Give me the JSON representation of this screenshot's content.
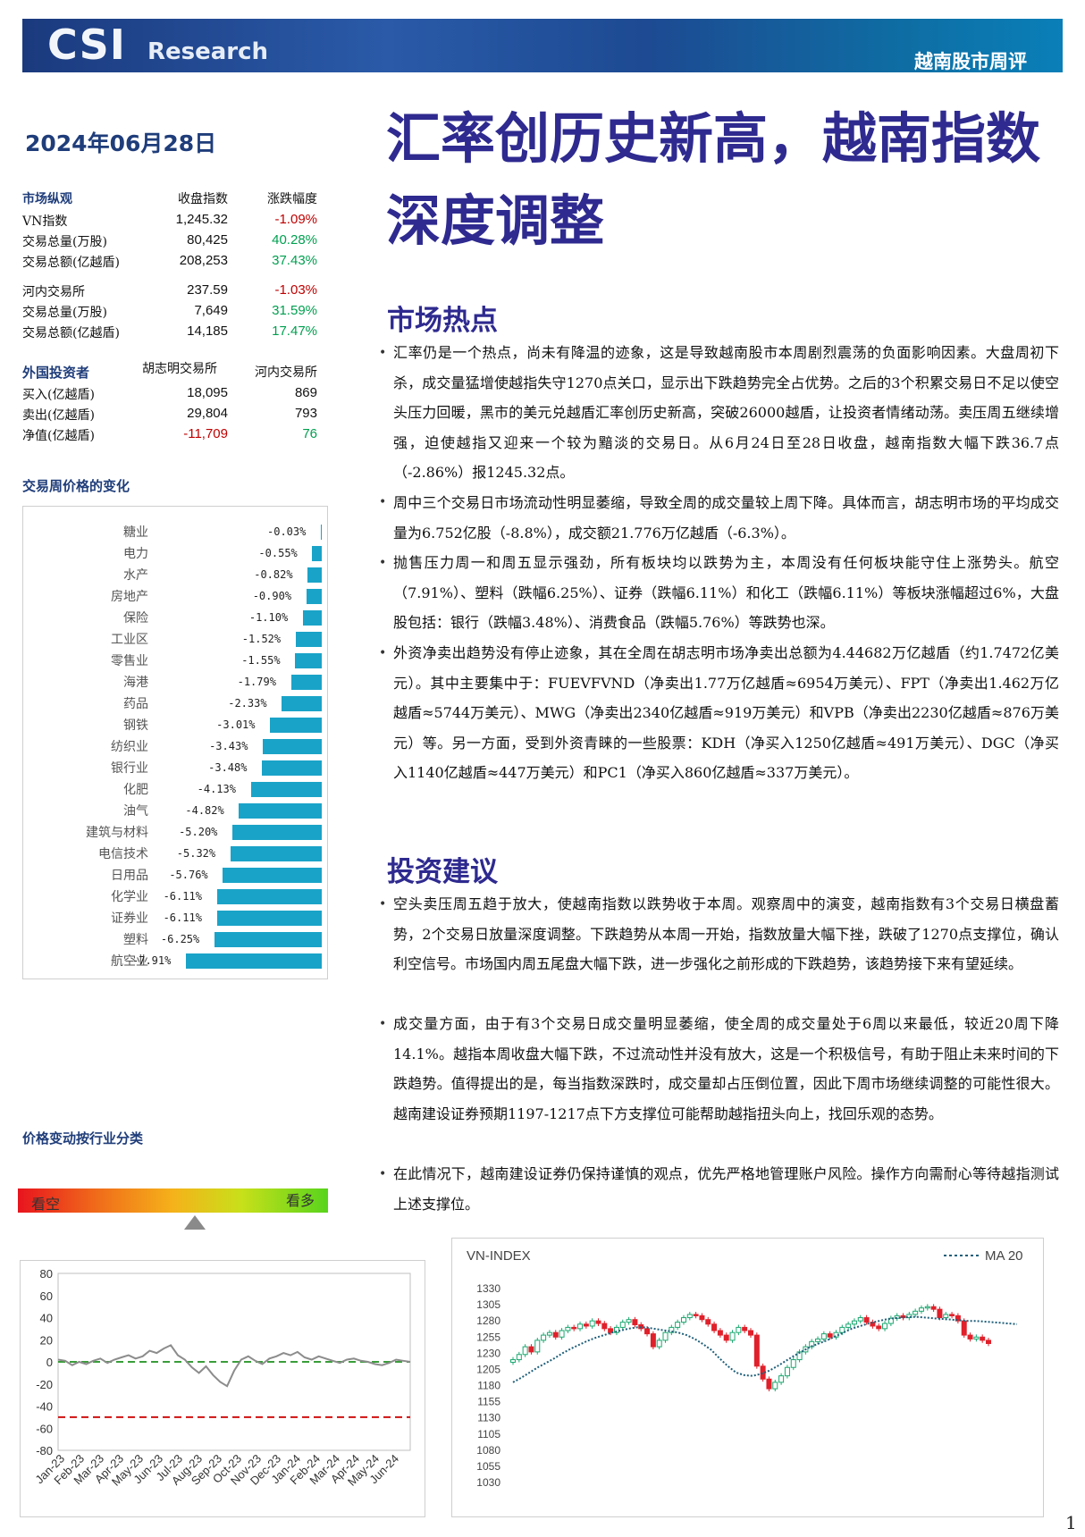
{
  "header": {
    "brand_main": "CSI",
    "brand_sub": "Research",
    "report_type": "越南股市周评"
  },
  "date": "2024年06月28日",
  "headline": "汇率创历史新高，越南指数深度调整",
  "market_overview": {
    "headers": [
      "市场纵观",
      "收盘指数",
      "涨跌幅度"
    ],
    "hose": [
      {
        "label": "VN指数",
        "value": "1,245.32",
        "change": "-1.09%"
      },
      {
        "label": "交易总量(万股)",
        "value": "80,425",
        "change": "40.28%"
      },
      {
        "label": "交易总额(亿越盾)",
        "value": "208,253",
        "change": "37.43%"
      }
    ],
    "hnx": [
      {
        "label": "河内交易所",
        "value": "237.59",
        "change": "-1.03%"
      },
      {
        "label": "交易总量(万股)",
        "value": "7,649",
        "change": "31.59%"
      },
      {
        "label": "交易总额(亿越盾)",
        "value": "14,185",
        "change": "17.47%"
      }
    ]
  },
  "foreign": {
    "headers": [
      "外国投资者",
      "胡志明交易所",
      "河内交易所"
    ],
    "rows": [
      {
        "label": "买入(亿越盾)",
        "hose": "18,095",
        "hnx": "869"
      },
      {
        "label": "卖出(亿越盾)",
        "hose": "29,804",
        "hnx": "793"
      },
      {
        "label": "净值(亿越盾)",
        "hose": "-11,709",
        "hnx": "76"
      }
    ]
  },
  "sector_section_title": "交易周价格的变化",
  "chart_data": [
    {
      "type": "bar",
      "orientation": "horizontal",
      "categories": [
        "糖业",
        "电力",
        "水产",
        "房地产",
        "保险",
        "工业区",
        "零售业",
        "海港",
        "药品",
        "钢铁",
        "纺织业",
        "银行业",
        "化肥",
        "油气",
        "建筑与材料",
        "电信技术",
        "日用品",
        "化学业",
        "证券业",
        "塑料",
        "航空业"
      ],
      "values": [
        -0.03,
        -0.55,
        -0.82,
        -0.9,
        -1.1,
        -1.52,
        -1.55,
        -1.79,
        -2.33,
        -3.01,
        -3.43,
        -3.48,
        -4.13,
        -4.82,
        -5.2,
        -5.32,
        -5.76,
        -6.11,
        -6.11,
        -6.25,
        -7.91
      ],
      "value_labels": [
        "-0.03%",
        "-0.55%",
        "-0.82%",
        "-0.90%",
        "-1.10%",
        "-1.52%",
        "-1.55%",
        "-1.79%",
        "-2.33%",
        "-3.01%",
        "-3.43%",
        "-3.48%",
        "-4.13%",
        "-4.82%",
        "-5.20%",
        "-5.32%",
        "-5.76%",
        "-6.11%",
        "-6.11%",
        "-6.25%",
        "-7.91%"
      ],
      "color": "#1aa3c8"
    },
    {
      "type": "line",
      "x_ticks": [
        "Jan-23",
        "Feb-23",
        "Mar-23",
        "Apr-23",
        "May-23",
        "Jun-23",
        "Jul-23",
        "Aug-23",
        "Sep-23",
        "Oct-23",
        "Nov-23",
        "Dec-23",
        "Jan-24",
        "Feb-24",
        "Mar-24",
        "Apr-24",
        "May-24",
        "Jun-24"
      ],
      "ylim": [
        -80,
        80
      ],
      "y_ticks": [
        80,
        60,
        40,
        20,
        0,
        -20,
        -40,
        -60,
        -80
      ],
      "series": [
        {
          "values": [
            2,
            1,
            -3,
            0,
            -2,
            1,
            3,
            -1,
            2,
            4,
            6,
            3,
            5,
            10,
            8,
            12,
            15,
            6,
            2,
            -5,
            -10,
            -4,
            -12,
            -18,
            -22,
            -8,
            2,
            5,
            1,
            -2,
            3,
            5,
            8,
            6,
            9,
            4,
            2,
            5,
            3,
            1,
            -1,
            2,
            3,
            1,
            0,
            -2,
            -3,
            -1,
            2,
            1,
            0
          ],
          "color": "#8c8c8c"
        }
      ],
      "reference_lines": [
        {
          "y": 0,
          "color": "#3a9d3a",
          "style": "dashed"
        },
        {
          "y": -50,
          "color": "#d01010",
          "style": "dashed"
        }
      ]
    },
    {
      "type": "candlestick",
      "title": "VN-INDEX",
      "legend": [
        "MA 20"
      ],
      "ylim": [
        1030,
        1330
      ],
      "y_ticks": [
        1330,
        1305,
        1280,
        1255,
        1230,
        1205,
        1180,
        1155,
        1130,
        1105,
        1080,
        1055,
        1030
      ],
      "close": [
        1220,
        1228,
        1240,
        1232,
        1250,
        1258,
        1262,
        1255,
        1265,
        1270,
        1268,
        1275,
        1272,
        1280,
        1276,
        1268,
        1262,
        1270,
        1278,
        1282,
        1274,
        1268,
        1260,
        1240,
        1250,
        1262,
        1270,
        1278,
        1285,
        1290,
        1288,
        1282,
        1275,
        1265,
        1258,
        1250,
        1262,
        1270,
        1265,
        1258,
        1210,
        1190,
        1175,
        1185,
        1195,
        1208,
        1220,
        1232,
        1240,
        1248,
        1252,
        1260,
        1255,
        1262,
        1270,
        1275,
        1280,
        1285,
        1278,
        1272,
        1268,
        1276,
        1284,
        1288,
        1285,
        1290,
        1295,
        1300,
        1302,
        1298,
        1285,
        1290,
        1288,
        1280,
        1258,
        1252,
        1255,
        1250,
        1245
      ],
      "ma20": [
        1185,
        1192,
        1200,
        1208,
        1215,
        1222,
        1230,
        1237,
        1243,
        1249,
        1254,
        1258,
        1262,
        1265,
        1268,
        1270,
        1270,
        1268,
        1266,
        1264,
        1262,
        1258,
        1252,
        1244,
        1235,
        1222,
        1210,
        1200,
        1196,
        1195,
        1198,
        1203,
        1210,
        1218,
        1226,
        1233,
        1240,
        1245,
        1250,
        1256,
        1262,
        1268,
        1272,
        1276,
        1279,
        1282,
        1284,
        1285,
        1286,
        1286,
        1285,
        1284,
        1283,
        1282,
        1281,
        1280,
        1280,
        1279,
        1278,
        1277,
        1276,
        1275
      ]
    }
  ],
  "industry_section_title": "价格变动按行业分类",
  "sentiment": {
    "bear_label": "看空",
    "bull_label": "看多",
    "position_pct": 57
  },
  "hot_title": "市场热点",
  "hot_bullets": [
    "汇率仍是一个热点，尚未有降温的迹象，这是导致越南股市本周剧烈震荡的负面影响因素。大盘周初下杀，成交量猛增使越指失守1270点关口，显示出下跌趋势完全占优势。之后的3个积累交易日不足以使空头压力回暖，黑市的美元兑越盾汇率创历史新高，突破26000越盾，让投资者情绪动荡。卖压周五继续增强，迫使越指又迎来一个较为黯淡的交易日。从6月24日至28日收盘，越南指数大幅下跌36.7点（-2.86%）报1245.32点。",
    "周中三个交易日市场流动性明显萎缩，导致全周的成交量较上周下降。具体而言，胡志明市场的平均成交量为6.752亿股（-8.8%），成交额21.776万亿越盾（-6.3%）。",
    "抛售压力周一和周五显示强劲，所有板块均以跌势为主，本周没有任何板块能守住上涨势头。航空（7.91%）、塑料（跌幅6.25%）、证券（跌幅6.11%）和化工（跌幅6.11%）等板块涨幅超过6%，大盘股包括：银行（跌幅3.48%）、消费食品（跌幅5.76%）等跌势也深。",
    "外资净卖出趋势没有停止迹象，其在全周在胡志明市场净卖出总额为4.44682万亿越盾（约1.7472亿美元）。其中主要集中于：FUEVFVND（净卖出1.77万亿越盾≈6954万美元）、FPT（净卖出1.462万亿越盾≈5744万美元）、MWG（净卖出2340亿越盾≈919万美元）和VPB（净卖出2230亿越盾≈876万美元）等。另一方面，受到外资青睐的一些股票：KDH（净买入1250亿越盾≈491万美元）、DGC（净买入1140亿越盾≈447万美元）和PC1（净买入860亿越盾≈337万美元）。"
  ],
  "invest_title": "投资建议",
  "invest_bullets": [
    "空头卖压周五趋于放大，使越南指数以跌势收于本周。观察周中的演变，越南指数有3个交易日横盘蓄势，2个交易日放量深度调整。下跌趋势从本周一开始，指数放量大幅下挫，跌破了1270点支撑位，确认利空信号。市场国内周五尾盘大幅下跌，进一步强化之前形成的下跌趋势，该趋势接下来有望延续。",
    "成交量方面，由于有3个交易日成交量明显萎缩，使全周的成交量处于6周以来最低，较近20周下降14.1%。越指本周收盘大幅下跌，不过流动性并没有放大，这是一个积极信号，有助于阻止未来时间的下跌趋势。值得提出的是，每当指数深跌时，成交量却占压倒位置，因此下周市场继续调整的可能性很大。越南建设证券预期1197-1217点下方支撑位可能帮助越指扭头向上，找回乐观的态势。",
    "在此情况下，越南建设证券仍保持谨慎的观点，优先严格地管理账户风险。操作方向需耐心等待越指测试上述支撑位。"
  ],
  "page_number": "1"
}
